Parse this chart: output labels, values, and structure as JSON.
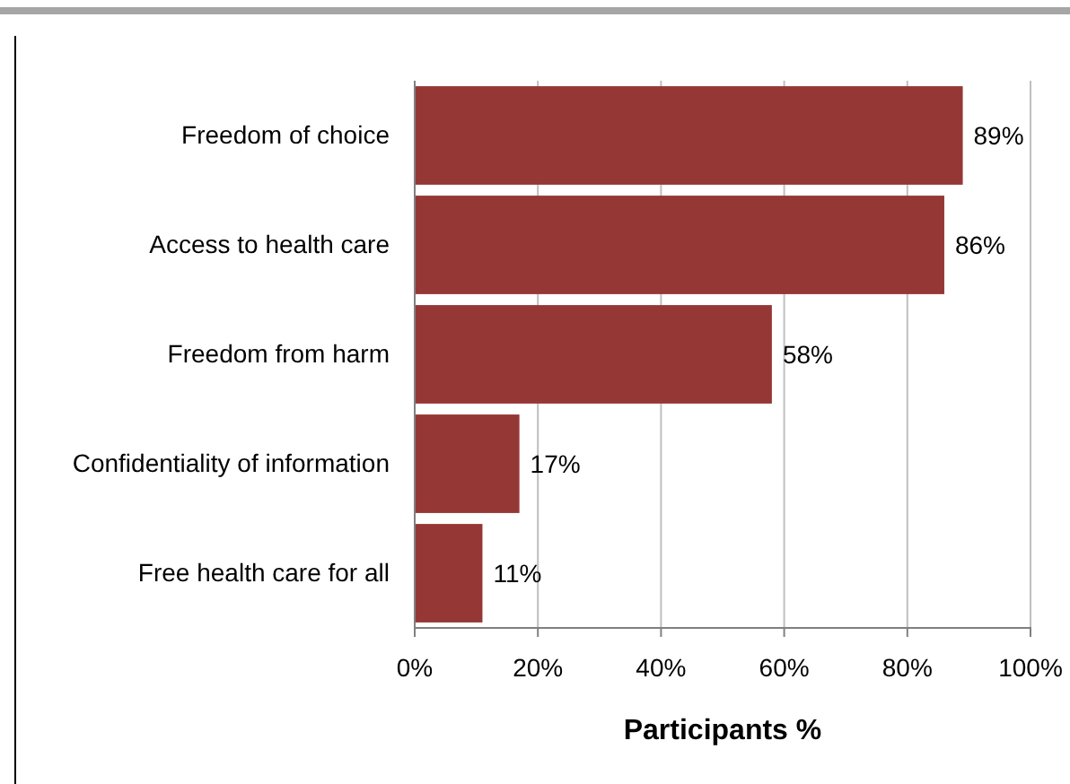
{
  "chart_data": {
    "type": "bar",
    "orientation": "horizontal",
    "xlabel": "Participants %",
    "categories": [
      "Freedom of choice",
      "Access to health care",
      "Freedom from harm",
      "Confidentiality of information",
      "Free health care for all"
    ],
    "values": [
      89,
      86,
      58,
      17,
      11
    ],
    "value_labels": [
      "89%",
      "86%",
      "58%",
      "17%",
      "11%"
    ],
    "color": "#953735",
    "xlim": [
      0,
      100
    ],
    "xticks": [
      {
        "value": 0,
        "label": "0%"
      },
      {
        "value": 20,
        "label": "20%"
      },
      {
        "value": 40,
        "label": "40%"
      },
      {
        "value": 60,
        "label": "60%"
      },
      {
        "value": 80,
        "label": "80%"
      },
      {
        "value": 100,
        "label": "100%"
      }
    ],
    "grid": "x"
  }
}
